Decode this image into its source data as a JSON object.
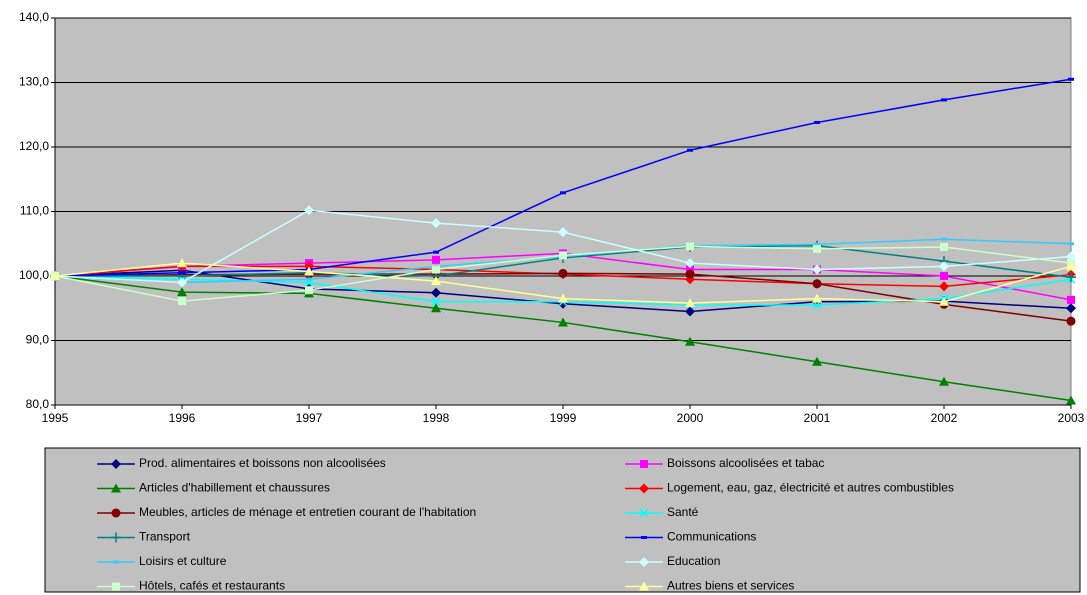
{
  "chart_data": {
    "type": "line",
    "x": [
      "1995",
      "1996",
      "1997",
      "1998",
      "1999",
      "2000",
      "2001",
      "2002",
      "2003"
    ],
    "ylim": [
      80,
      140
    ],
    "yticks": [
      {
        "value": 80,
        "label": "80,0"
      },
      {
        "value": 90,
        "label": "90,0"
      },
      {
        "value": 100,
        "label": "100,0"
      },
      {
        "value": 110,
        "label": "110,0"
      },
      {
        "value": 120,
        "label": "120,0"
      },
      {
        "value": 130,
        "label": "130,0"
      },
      {
        "value": 140,
        "label": "140,0"
      }
    ],
    "grid": true,
    "legend": "bottom",
    "series": [
      {
        "name": "Prod. alimentaires et boissons non alcoolisées",
        "color": "#000080",
        "marker": "diamond",
        "values": [
          100,
          100.9,
          98.0,
          97.4,
          95.7,
          94.5,
          96.0,
          96.1,
          95.0
        ]
      },
      {
        "name": "Boissons alcoolisées et tabac",
        "color": "#FF00FF",
        "marker": "square",
        "values": [
          100,
          101.5,
          102.0,
          102.5,
          103.5,
          101.0,
          101.0,
          100.0,
          96.3
        ]
      },
      {
        "name": "Articles d'habillement et chaussures",
        "color": "#008000",
        "marker": "triangle",
        "values": [
          100,
          97.5,
          97.3,
          95.0,
          92.8,
          89.8,
          86.7,
          83.6,
          80.7
        ]
      },
      {
        "name": "Logement, eau, gaz, électricité et autres combustibles",
        "color": "#FF0000",
        "marker": "diamond",
        "values": [
          100,
          101.5,
          101.5,
          101.0,
          100.3,
          99.5,
          98.8,
          98.4,
          100.2
        ]
      },
      {
        "name": "Meubles, articles de ménage et entretien courant de l'habitation",
        "color": "#800000",
        "marker": "circle",
        "values": [
          100,
          100.2,
          100.3,
          100.3,
          100.4,
          100.3,
          98.8,
          95.6,
          93.0
        ]
      },
      {
        "name": "Santé",
        "color": "#00FFFF",
        "marker": "x",
        "values": [
          100,
          99.5,
          99.0,
          96.0,
          96.0,
          95.5,
          95.5,
          96.5,
          99.5
        ]
      },
      {
        "name": "Transport",
        "color": "#008080",
        "marker": "plus",
        "values": [
          100,
          100.0,
          100.5,
          100.0,
          102.8,
          104.5,
          104.7,
          102.3,
          99.8
        ]
      },
      {
        "name": "Communications",
        "color": "#0000FF",
        "marker": "dash",
        "values": [
          100,
          100.5,
          101.0,
          103.7,
          112.9,
          119.5,
          123.8,
          127.3,
          130.5
        ]
      },
      {
        "name": "Loisirs et culture",
        "color": "#33CCFF",
        "marker": "dash",
        "values": [
          100,
          99.0,
          99.5,
          101.5,
          103.0,
          104.7,
          104.9,
          105.7,
          105.0
        ]
      },
      {
        "name": "Education",
        "color": "#CCFFFF",
        "marker": "diamond",
        "values": [
          100,
          99.0,
          110.2,
          108.2,
          106.8,
          102.0,
          101.0,
          101.5,
          103.0
        ]
      },
      {
        "name": "Hôtels, cafés et restaurants",
        "color": "#CCFFCC",
        "marker": "square",
        "values": [
          100,
          96.1,
          97.8,
          101.0,
          103.2,
          104.6,
          104.2,
          104.5,
          102.0
        ]
      },
      {
        "name": "Autres biens et services",
        "color": "#FFFF99",
        "marker": "triangle",
        "values": [
          100,
          102.0,
          100.7,
          99.2,
          96.5,
          95.8,
          96.5,
          96.0,
          101.5
        ]
      }
    ]
  }
}
